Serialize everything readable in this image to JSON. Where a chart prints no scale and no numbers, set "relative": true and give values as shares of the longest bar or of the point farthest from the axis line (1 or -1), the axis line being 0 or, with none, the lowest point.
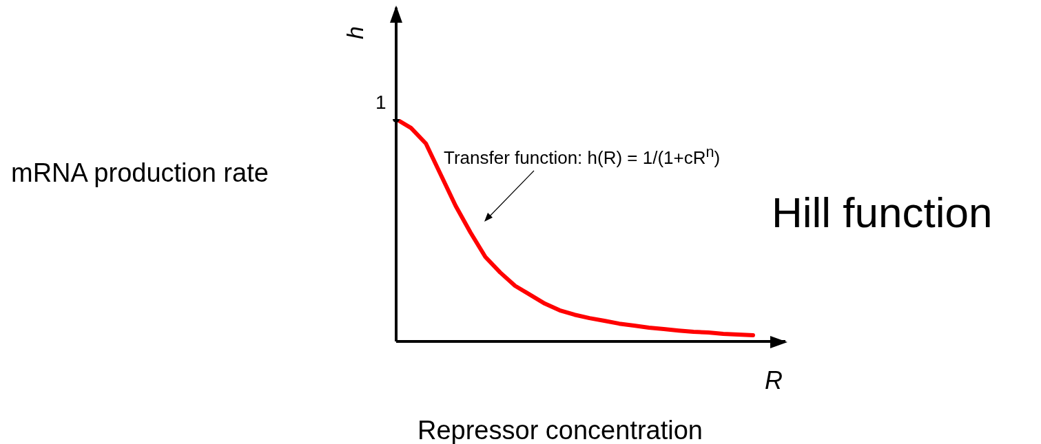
{
  "chart_data": {
    "type": "line",
    "title": "Hill function",
    "xlabel": "R",
    "ylabel": "h",
    "annotations": [
      "mRNA production rate",
      "Repressor concentration",
      "Transfer function: h(R) = 1/(1+cR$^{n}$)",
      "1"
    ],
    "relative": true,
    "categories": [
      null,
      null,
      null,
      null,
      null,
      null,
      null,
      null,
      null,
      null,
      null,
      null,
      null,
      null,
      null,
      null,
      null,
      null,
      null,
      null,
      null,
      null,
      null,
      null,
      null
    ],
    "series": [
      {
        "color": "#ff0000",
        "values": [
          1.0,
          0.96,
          0.89,
          0.75,
          0.61,
          0.49,
          0.38,
          0.31,
          0.25,
          0.21,
          0.17,
          0.14,
          0.12,
          0.105,
          0.093,
          0.08,
          0.071,
          0.062,
          0.056,
          0.049,
          0.043,
          0.04,
          0.034,
          0.031,
          0.028
        ]
      }
    ],
    "grid": false,
    "legend": false,
    "marker": "none",
    "line_style": "solid"
  }
}
